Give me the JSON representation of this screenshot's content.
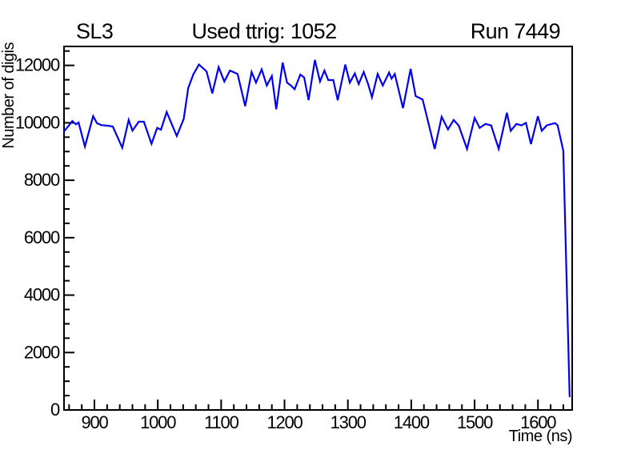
{
  "header": {
    "left_label": "SL3",
    "title": "Used ttrig: 1052",
    "right_label": "Run 7449"
  },
  "chart_data": {
    "type": "line",
    "title": "Used ttrig: 1052",
    "xlabel": "Time (ns)",
    "ylabel": "Number of digis",
    "xlim": [
      852,
      1654
    ],
    "ylim": [
      0,
      12660
    ],
    "x_major_ticks": [
      900,
      1000,
      1100,
      1200,
      1300,
      1400,
      1500,
      1600
    ],
    "x_minor_step": 20,
    "y_major_ticks": [
      0,
      2000,
      4000,
      6000,
      8000,
      10000,
      12000
    ],
    "y_minor_step": 500,
    "grid": false,
    "legend_position": "none",
    "line_color": "#0000ee",
    "axis_color": "#000000",
    "background_color": "#ffffff",
    "series": [
      {
        "name": "number-of-digis-vs-time",
        "points": [
          [
            852,
            9700
          ],
          [
            861,
            9940
          ],
          [
            865,
            10060
          ],
          [
            871,
            9950
          ],
          [
            875,
            10010
          ],
          [
            885,
            9175
          ],
          [
            898,
            10230
          ],
          [
            904,
            9985
          ],
          [
            911,
            9920
          ],
          [
            921,
            9900
          ],
          [
            929,
            9870
          ],
          [
            944,
            9130
          ],
          [
            954,
            10100
          ],
          [
            960,
            9730
          ],
          [
            970,
            10040
          ],
          [
            978,
            10040
          ],
          [
            990,
            9270
          ],
          [
            999,
            9825
          ],
          [
            1005,
            9760
          ],
          [
            1014,
            10375
          ],
          [
            1030,
            9540
          ],
          [
            1041,
            10140
          ],
          [
            1048,
            11210
          ],
          [
            1056,
            11680
          ],
          [
            1065,
            12030
          ],
          [
            1077,
            11790
          ],
          [
            1086,
            11025
          ],
          [
            1096,
            11940
          ],
          [
            1105,
            11440
          ],
          [
            1114,
            11820
          ],
          [
            1126,
            11700
          ],
          [
            1138,
            10580
          ],
          [
            1148,
            11770
          ],
          [
            1155,
            11400
          ],
          [
            1164,
            11860
          ],
          [
            1172,
            11300
          ],
          [
            1180,
            11630
          ],
          [
            1187,
            10470
          ],
          [
            1197,
            12100
          ],
          [
            1204,
            11400
          ],
          [
            1210,
            11300
          ],
          [
            1216,
            11170
          ],
          [
            1225,
            11680
          ],
          [
            1231,
            11580
          ],
          [
            1238,
            10790
          ],
          [
            1248,
            12190
          ],
          [
            1256,
            11440
          ],
          [
            1263,
            11820
          ],
          [
            1269,
            11490
          ],
          [
            1277,
            11490
          ],
          [
            1284,
            10790
          ],
          [
            1296,
            12030
          ],
          [
            1303,
            11400
          ],
          [
            1311,
            11720
          ],
          [
            1317,
            11350
          ],
          [
            1325,
            11770
          ],
          [
            1332,
            11350
          ],
          [
            1338,
            10890
          ],
          [
            1347,
            11700
          ],
          [
            1355,
            11300
          ],
          [
            1365,
            11750
          ],
          [
            1369,
            11540
          ],
          [
            1374,
            11700
          ],
          [
            1387,
            10510
          ],
          [
            1399,
            11880
          ],
          [
            1407,
            10930
          ],
          [
            1418,
            10810
          ],
          [
            1427,
            10000
          ],
          [
            1437,
            9090
          ],
          [
            1448,
            10210
          ],
          [
            1458,
            9770
          ],
          [
            1467,
            10100
          ],
          [
            1475,
            9900
          ],
          [
            1488,
            9090
          ],
          [
            1500,
            10170
          ],
          [
            1508,
            9820
          ],
          [
            1517,
            9960
          ],
          [
            1526,
            9910
          ],
          [
            1538,
            9090
          ],
          [
            1551,
            10350
          ],
          [
            1557,
            9720
          ],
          [
            1566,
            9960
          ],
          [
            1574,
            9910
          ],
          [
            1581,
            10000
          ],
          [
            1589,
            9260
          ],
          [
            1600,
            10230
          ],
          [
            1606,
            9720
          ],
          [
            1614,
            9910
          ],
          [
            1627,
            9990
          ],
          [
            1631,
            9910
          ],
          [
            1640,
            9030
          ],
          [
            1650,
            470
          ]
        ]
      }
    ]
  }
}
